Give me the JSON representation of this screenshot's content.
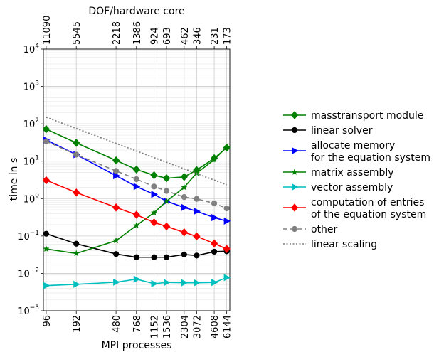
{
  "chart_data": {
    "type": "line",
    "title": "",
    "xlabel": "MPI processes",
    "ylabel": "time in s",
    "top_xlabel": "DOF/hardware core",
    "yscale": "log",
    "xscale": "log",
    "ylim": [
      0.001,
      10000
    ],
    "grid": true,
    "legend_placement": "right",
    "x": [
      96,
      192,
      480,
      768,
      1152,
      1536,
      2304,
      3072,
      4608,
      6144
    ],
    "x_tick_labels": [
      "96",
      "192",
      "480",
      "768",
      "1152",
      "1536",
      "2304",
      "3072",
      "4608",
      "6144"
    ],
    "top_tick_labels": [
      "11090",
      "5545",
      "2218",
      "1386",
      "924",
      "693",
      "462",
      "346",
      "231",
      "173"
    ],
    "y_ticks": [
      {
        "value": 0.001,
        "base": "10",
        "exp": "−3"
      },
      {
        "value": 0.01,
        "base": "10",
        "exp": "−2"
      },
      {
        "value": 0.1,
        "base": "10",
        "exp": "−1"
      },
      {
        "value": 1,
        "base": "10",
        "exp": "0"
      },
      {
        "value": 10,
        "base": "10",
        "exp": "1"
      },
      {
        "value": 100,
        "base": "10",
        "exp": "2"
      },
      {
        "value": 1000,
        "base": "10",
        "exp": "3"
      },
      {
        "value": 10000,
        "base": "10",
        "exp": "4"
      }
    ],
    "series": [
      {
        "name": "masstransport module",
        "color": "#008000",
        "marker": "diamond",
        "dash": "solid",
        "values": [
          72,
          31,
          10.5,
          6.0,
          4.2,
          3.5,
          3.8,
          5.8,
          12.0,
          23.0
        ]
      },
      {
        "name": "linear solver",
        "color": "#000000",
        "marker": "circle",
        "dash": "solid",
        "values": [
          0.115,
          0.062,
          0.033,
          0.027,
          0.027,
          0.027,
          0.032,
          0.03,
          0.038,
          0.039
        ]
      },
      {
        "name": "allocate memory\nfor the equation system",
        "color": "#0000ff",
        "marker": "triangle-right",
        "dash": "solid",
        "values": [
          37,
          15,
          4.1,
          2.1,
          1.3,
          0.85,
          0.58,
          0.46,
          0.31,
          0.25
        ]
      },
      {
        "name": "matrix assembly",
        "color": "#008000",
        "marker": "star",
        "dash": "solid",
        "values": [
          0.045,
          0.034,
          0.075,
          0.19,
          0.42,
          0.85,
          2.0,
          4.8,
          11.0,
          24.0
        ]
      },
      {
        "name": "vector assembly",
        "color": "#00bfbf",
        "marker": "triangle-right",
        "dash": "solid",
        "values": [
          0.0047,
          0.0051,
          0.0058,
          0.007,
          0.0053,
          0.0057,
          0.0056,
          0.0056,
          0.0057,
          0.0077
        ]
      },
      {
        "name": "computation of entries\nof the equation system",
        "color": "#ff0000",
        "marker": "diamond",
        "dash": "solid",
        "values": [
          3.1,
          1.45,
          0.58,
          0.37,
          0.23,
          0.18,
          0.125,
          0.098,
          0.063,
          0.045
        ]
      },
      {
        "name": "other",
        "color": "#808080",
        "marker": "circle",
        "dash": "dashed",
        "values": [
          34,
          15,
          5.5,
          3.3,
          2.1,
          1.6,
          1.1,
          0.98,
          0.75,
          0.55
        ]
      },
      {
        "name": "linear scaling",
        "color": "#808080",
        "marker": "none",
        "dash": "dotted",
        "line_only": true,
        "x": [
          96,
          6144
        ],
        "values": [
          150,
          2.34
        ]
      }
    ]
  }
}
